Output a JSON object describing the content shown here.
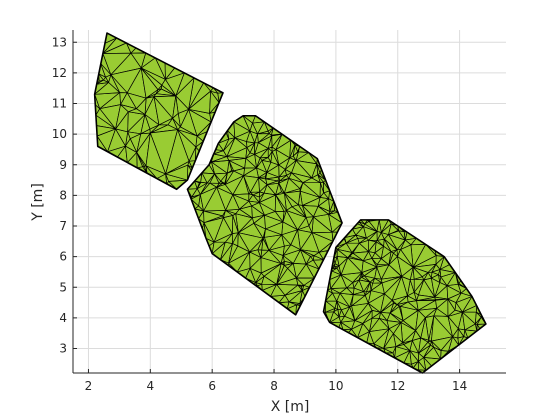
{
  "chart_data": {
    "type": "scatter",
    "subtype": "triangulated-mesh",
    "xlabel": "X [m]",
    "ylabel": "Y [m]",
    "xlim": [
      1.5,
      15.5
    ],
    "ylim": [
      2.2,
      13.4
    ],
    "xticks": [
      2,
      4,
      6,
      8,
      10,
      12,
      14
    ],
    "yticks": [
      3,
      4,
      5,
      6,
      7,
      8,
      9,
      10,
      11,
      12,
      13
    ],
    "grid": true,
    "colors": {
      "fill": "#99cc33",
      "edge": "#000000",
      "grid": "#dcdcdc",
      "axis": "#262626"
    },
    "regions": [
      {
        "boundary": [
          [
            2.6,
            13.3
          ],
          [
            6.35,
            11.35
          ],
          [
            5.2,
            8.5
          ],
          [
            4.85,
            8.2
          ],
          [
            2.3,
            9.6
          ],
          [
            2.2,
            11.3
          ]
        ],
        "interior_samples": 45,
        "seed": 11
      },
      {
        "boundary": [
          [
            7.0,
            10.6
          ],
          [
            7.4,
            10.6
          ],
          [
            9.4,
            9.2
          ],
          [
            10.2,
            7.1
          ],
          [
            8.7,
            4.1
          ],
          [
            6.0,
            6.1
          ],
          [
            5.8,
            6.6
          ],
          [
            5.2,
            8.2
          ],
          [
            5.9,
            9.0
          ],
          [
            6.2,
            9.7
          ],
          [
            6.7,
            10.4
          ]
        ],
        "interior_samples": 170,
        "seed": 23
      },
      {
        "boundary": [
          [
            10.8,
            7.2
          ],
          [
            11.7,
            7.2
          ],
          [
            13.5,
            6.0
          ],
          [
            14.4,
            4.7
          ],
          [
            14.85,
            3.8
          ],
          [
            12.8,
            2.2
          ],
          [
            9.8,
            3.85
          ],
          [
            9.6,
            4.2
          ],
          [
            10.0,
            6.3
          ]
        ],
        "interior_samples": 170,
        "seed": 37
      }
    ]
  }
}
